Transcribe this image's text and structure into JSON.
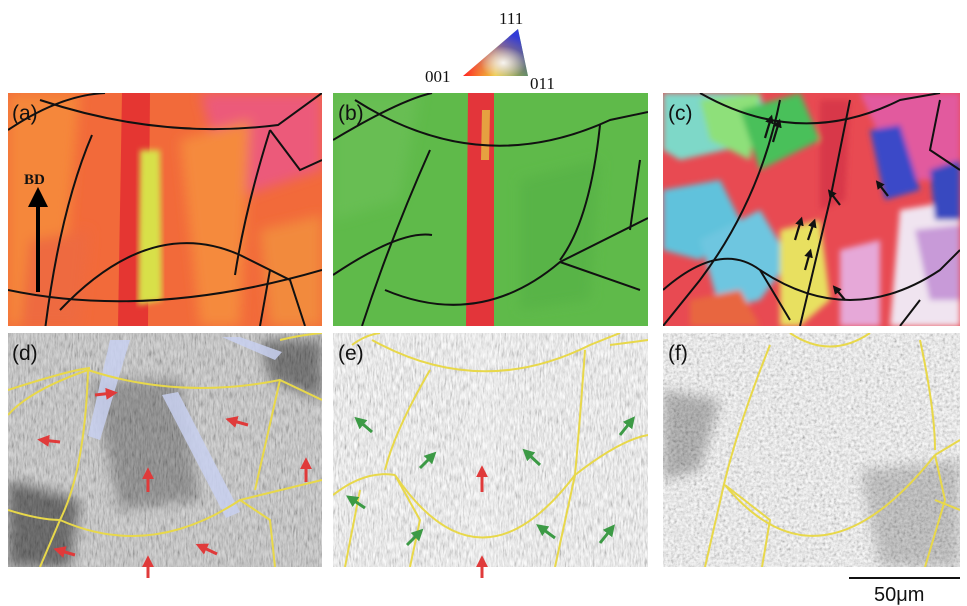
{
  "legend": {
    "corner_top": "111",
    "corner_left": "001",
    "corner_right": "011"
  },
  "panels": [
    {
      "id": "a",
      "label": "(a)"
    },
    {
      "id": "b",
      "label": "(b)"
    },
    {
      "id": "c",
      "label": "(c)"
    },
    {
      "id": "d",
      "label": "(d)"
    },
    {
      "id": "e",
      "label": "(e)"
    },
    {
      "id": "f",
      "label": "(f)"
    }
  ],
  "build_direction_label": "BD",
  "scale_bar_label": "50μm",
  "colors": {
    "orientation_001": "#e8383a",
    "orientation_011": "#56b64a",
    "orientation_111": "#2e3fd0",
    "melt_pool_boundary_ebsd": "#111111",
    "melt_pool_boundary_micrograph": "#e8d84a",
    "arrow_red": "#e03a3a",
    "arrow_green": "#3c9a45",
    "arrow_black": "#111111"
  }
}
